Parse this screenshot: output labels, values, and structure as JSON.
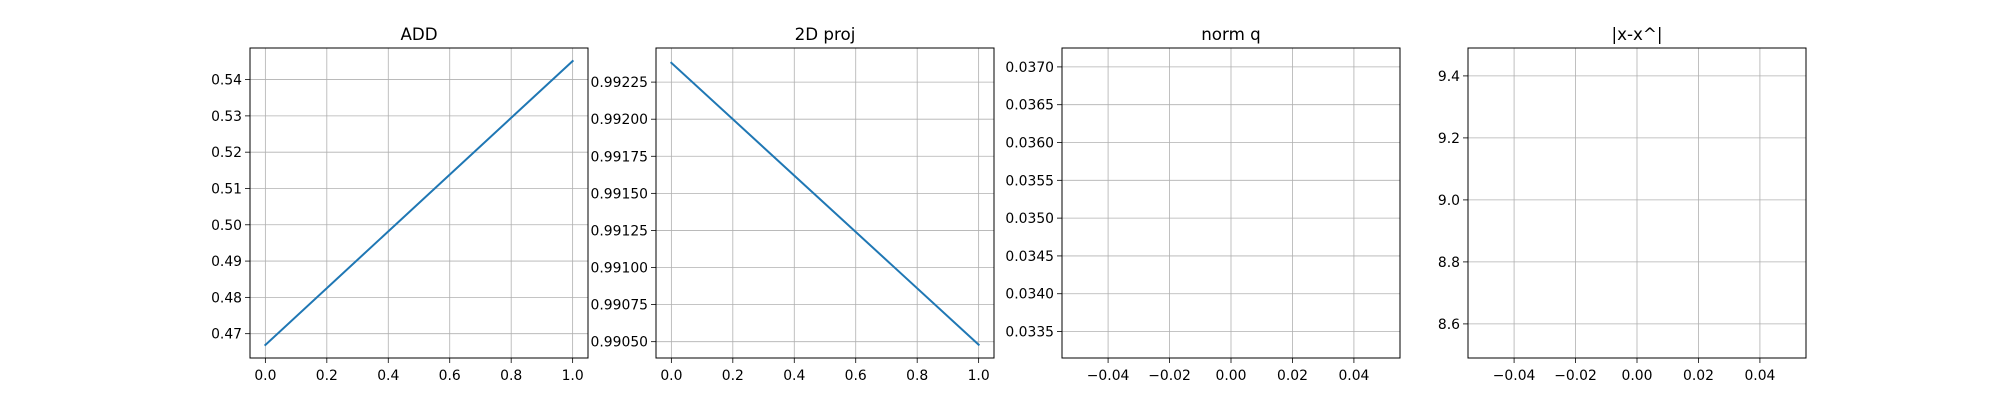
{
  "chart_data": [
    {
      "type": "line",
      "title": "ADD",
      "xlabel": "",
      "ylabel": "",
      "xlim": [
        -0.05,
        1.05
      ],
      "ylim": [
        0.4633,
        0.5487
      ],
      "xticks": [
        0.0,
        0.2,
        0.4,
        0.6,
        0.8,
        1.0
      ],
      "xtick_labels": [
        "0.0",
        "0.2",
        "0.4",
        "0.6",
        "0.8",
        "1.0"
      ],
      "yticks": [
        0.47,
        0.48,
        0.49,
        0.5,
        0.51,
        0.52,
        0.53,
        0.54
      ],
      "ytick_labels": [
        "0.47",
        "0.48",
        "0.49",
        "0.50",
        "0.51",
        "0.52",
        "0.53",
        "0.54"
      ],
      "grid": true,
      "series": [
        {
          "x": [
            0.0,
            1.0
          ],
          "y": [
            0.4669,
            0.5451
          ],
          "color": "#1f77b4"
        }
      ]
    },
    {
      "type": "line",
      "title": "2D proj",
      "xlabel": "",
      "ylabel": "",
      "xlim": [
        -0.05,
        1.05
      ],
      "ylim": [
        0.99039,
        0.99248
      ],
      "xticks": [
        0.0,
        0.2,
        0.4,
        0.6,
        0.8,
        1.0
      ],
      "xtick_labels": [
        "0.0",
        "0.2",
        "0.4",
        "0.6",
        "0.8",
        "1.0"
      ],
      "yticks": [
        0.9905,
        0.99075,
        0.991,
        0.99125,
        0.9915,
        0.99175,
        0.992,
        0.99225
      ],
      "ytick_labels": [
        "0.99050",
        "0.99075",
        "0.99100",
        "0.99125",
        "0.99150",
        "0.99175",
        "0.99200",
        "0.99225"
      ],
      "grid": true,
      "series": [
        {
          "x": [
            0.0,
            1.0
          ],
          "y": [
            0.99238,
            0.99048
          ],
          "color": "#1f77b4"
        }
      ]
    },
    {
      "type": "line",
      "title": "norm q",
      "xlabel": "",
      "ylabel": "",
      "xlim": [
        -0.055,
        0.055
      ],
      "ylim": [
        0.03315,
        0.03725
      ],
      "xticks": [
        -0.04,
        -0.02,
        0.0,
        0.02,
        0.04
      ],
      "xtick_labels": [
        "−0.04",
        "−0.02",
        "0.00",
        "0.02",
        "0.04"
      ],
      "yticks": [
        0.0335,
        0.034,
        0.0345,
        0.035,
        0.0355,
        0.036,
        0.0365,
        0.037
      ],
      "ytick_labels": [
        "0.0335",
        "0.0340",
        "0.0345",
        "0.0350",
        "0.0355",
        "0.0360",
        "0.0365",
        "0.0370"
      ],
      "grid": true,
      "series": []
    },
    {
      "type": "line",
      "title": "|x-x^|",
      "xlabel": "",
      "ylabel": "",
      "xlim": [
        -0.055,
        0.055
      ],
      "ylim": [
        8.49,
        9.49
      ],
      "xticks": [
        -0.04,
        -0.02,
        0.0,
        0.02,
        0.04
      ],
      "xtick_labels": [
        "−0.04",
        "−0.02",
        "0.00",
        "0.02",
        "0.04"
      ],
      "yticks": [
        8.6,
        8.8,
        9.0,
        9.2,
        9.4
      ],
      "ytick_labels": [
        "8.6",
        "8.8",
        "9.0",
        "9.2",
        "9.4"
      ],
      "grid": true,
      "series": []
    }
  ]
}
